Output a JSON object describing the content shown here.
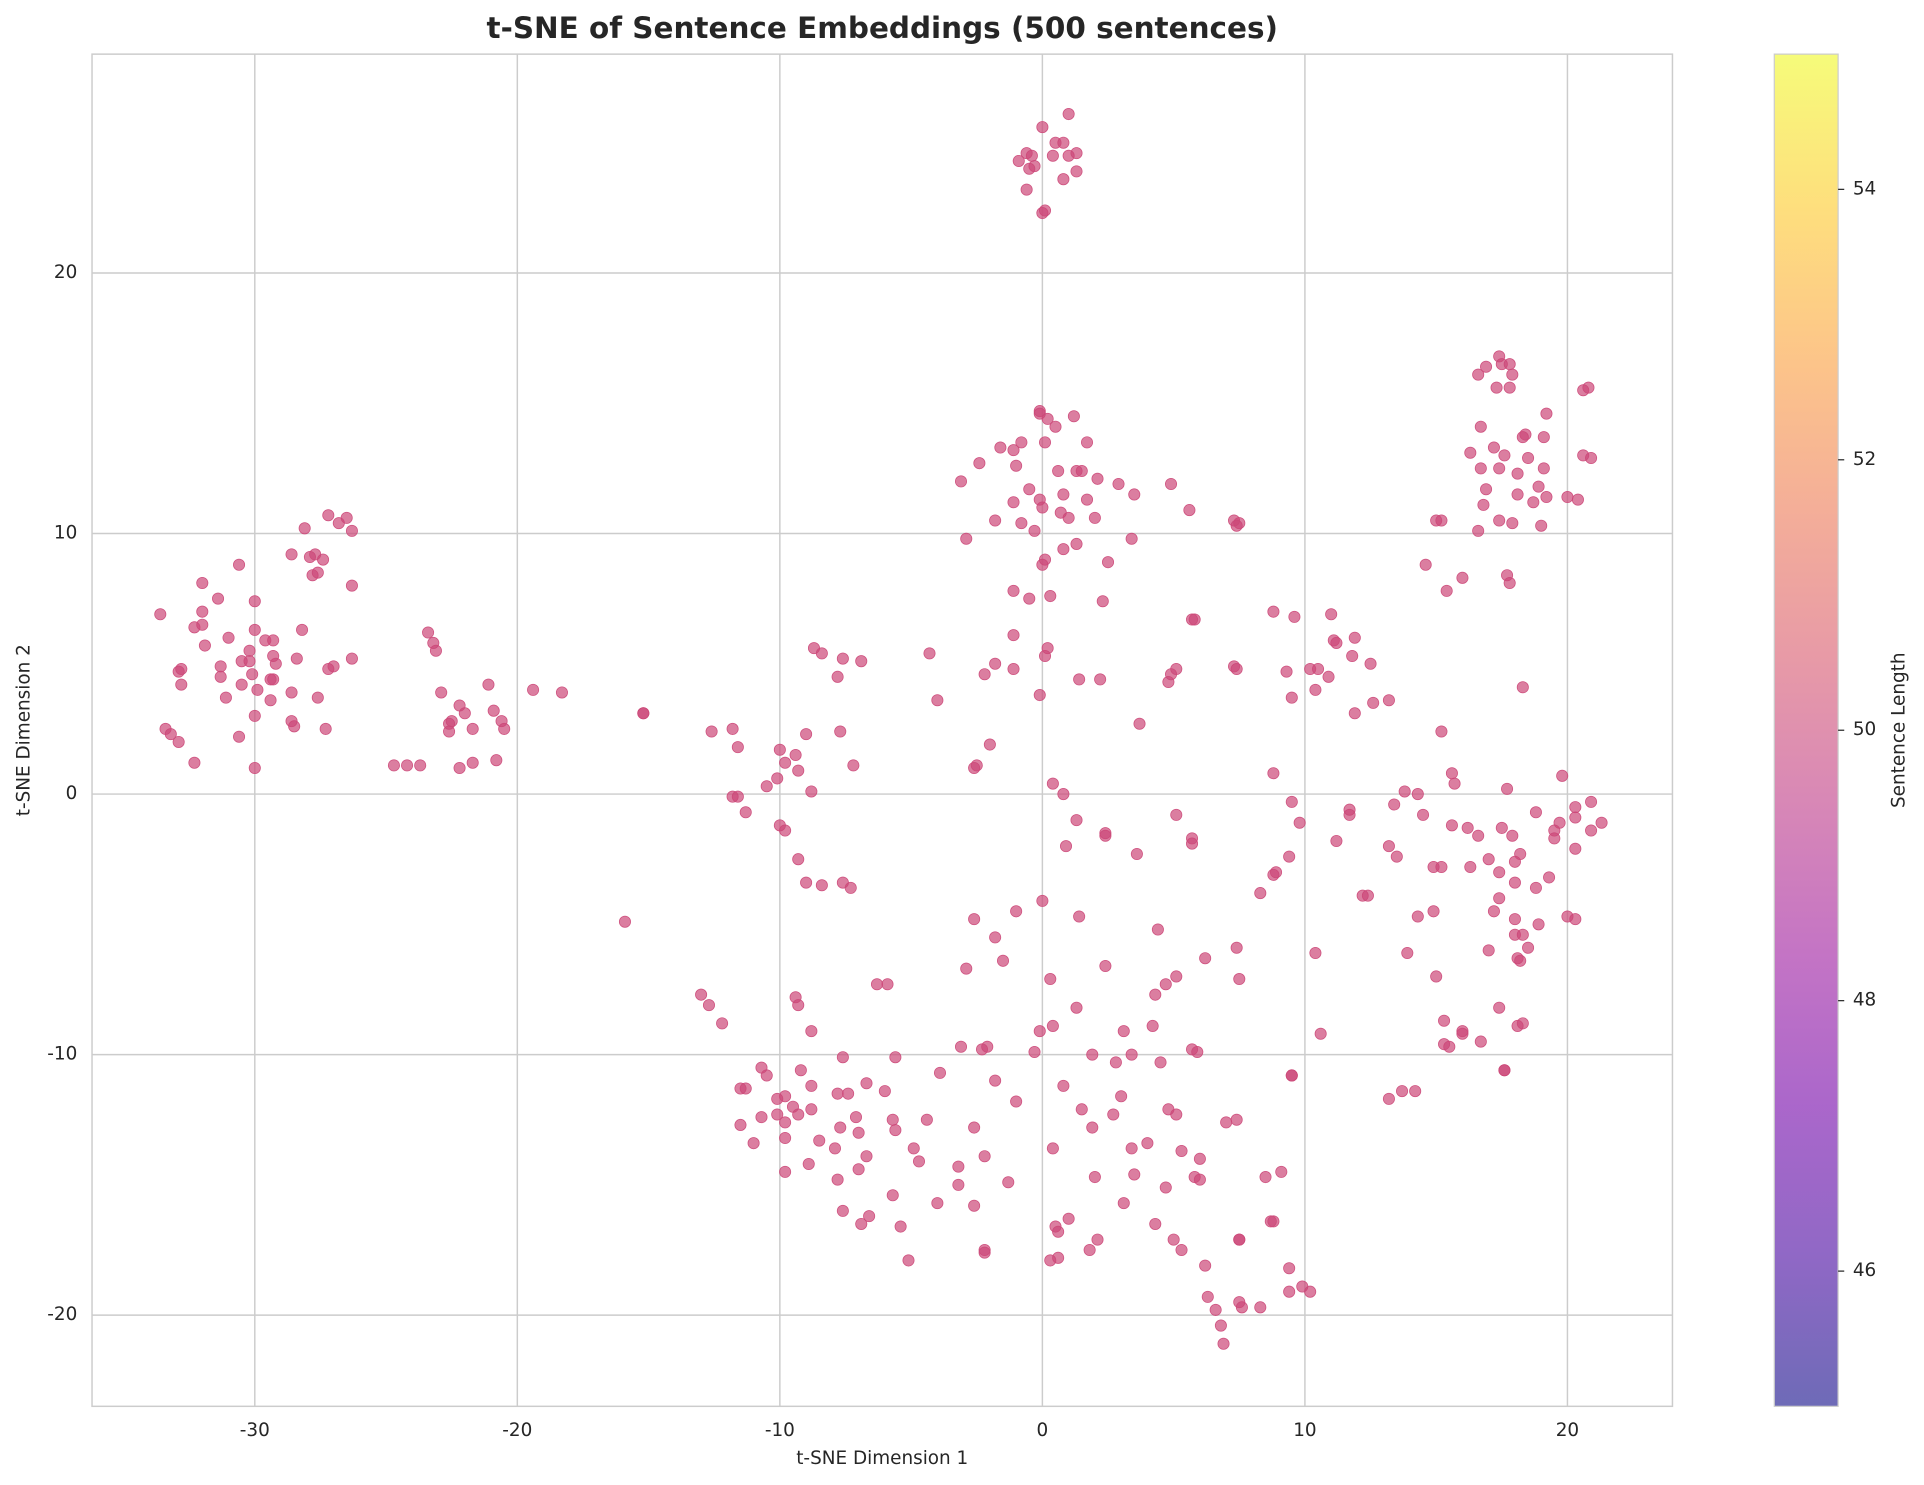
{
  "chart_data": {
    "type": "scatter",
    "title": "t-SNE of Sentence Embeddings (500 sentences)",
    "x_label": "t-SNE Dimension 1",
    "y_label": "t-SNE Dimension 2",
    "color": "#cc4778",
    "alpha": 0.7,
    "xlim": [
      -36.2,
      24.0
    ],
    "ylim": [
      -23.5,
      28.4
    ],
    "xticks": [
      -30,
      -20,
      -10,
      0,
      10,
      20
    ],
    "yticks": [
      -20,
      -10,
      0,
      10,
      20
    ],
    "grid": true,
    "colorbar": {
      "label": "Sentence Length",
      "colormap": "plasma",
      "lim": [
        45,
        55
      ],
      "ticks": [
        46,
        48,
        50,
        52,
        54
      ]
    },
    "x": [
      0.0,
      1.0,
      0.5,
      0.8,
      -0.6,
      -0.9,
      -0.4,
      0.4,
      1.3,
      1.0,
      -0.5,
      -0.3,
      1.3,
      0.8,
      -0.6,
      0.1,
      0.0,
      -27.2,
      -26.5,
      -26.8,
      -26.3,
      -28.1,
      -28.6,
      -27.7,
      -27.4,
      -27.9,
      -30.6,
      -27.8,
      -27.6,
      -32.0,
      -26.3,
      -31.4,
      -30.0,
      -33.6,
      -32.0,
      -32.3,
      -32.0,
      -28.2,
      -30.0,
      -31.0,
      -29.6,
      -29.3,
      -31.9,
      -30.2,
      -29.3,
      -28.4,
      -26.3,
      -29.2,
      -30.5,
      -30.2,
      -27.0,
      -27.2,
      -31.3,
      -32.8,
      -32.9,
      -30.1,
      -31.3,
      -29.4,
      -29.3,
      -32.8,
      -30.5,
      -29.9,
      -28.6,
      -27.6,
      -31.1,
      -29.4,
      -30.0,
      -28.6,
      -28.5,
      -27.3,
      -33.4,
      -33.2,
      -30.6,
      -32.9,
      -32.3,
      -30.0,
      -23.4,
      -23.2,
      -23.1,
      -21.1,
      -19.4,
      -18.3,
      -22.9,
      -22.2,
      -20.9,
      -22.0,
      -22.5,
      -22.6,
      -20.6,
      -20.5,
      -21.7,
      -22.6,
      -20.8,
      -21.7,
      -22.2,
      -23.7,
      -24.2,
      -24.7,
      -15.2,
      -15.2,
      -15.9,
      -13.0,
      -12.7,
      -12.2,
      -8.7,
      -8.4,
      -7.6,
      -6.9,
      -7.8,
      -12.6,
      -11.8,
      -7.7,
      -9.0,
      -11.6,
      -10.0,
      -9.4,
      -9.8,
      -7.2,
      -9.3,
      -10.1,
      -10.5,
      -8.8,
      -11.8,
      -11.6,
      -11.3,
      -10.0,
      -9.8,
      -9.3,
      -9.0,
      -8.4,
      -7.6,
      -7.3,
      -4.3,
      -4.0,
      -2.2,
      -2.0,
      -2.6,
      -2.5,
      -0.1,
      -0.1,
      1.2,
      0.2,
      0.5,
      -1.6,
      -1.1,
      -0.8,
      0.1,
      1.7,
      -3.1,
      -2.4,
      -1.0,
      0.6,
      1.3,
      1.5,
      2.1,
      2.9,
      3.5,
      4.9,
      -0.5,
      0.8,
      -1.1,
      -0.1,
      0.0,
      1.7,
      5.6,
      -1.8,
      -0.8,
      0.7,
      1.0,
      2.0,
      -0.3,
      7.3,
      7.5,
      7.4,
      -2.9,
      3.4,
      1.3,
      0.8,
      0.1,
      0.0,
      2.5,
      -1.1,
      -0.5,
      0.3,
      2.3,
      -1.1,
      0.2,
      0.1,
      5.8,
      5.7,
      -1.8,
      -1.1,
      1.4,
      2.2,
      5.1,
      4.9,
      4.8,
      7.3,
      7.4,
      -0.1,
      3.7,
      0.4,
      0.8,
      8.8,
      9.6,
      11.0,
      11.1,
      11.2,
      11.9,
      11.8,
      10.2,
      10.5,
      10.9,
      9.3,
      12.5,
      10.4,
      9.5,
      12.6,
      11.9,
      13.2,
      8.8,
      17.4,
      17.5,
      17.8,
      16.9,
      16.6,
      17.9,
      17.3,
      17.8,
      20.6,
      20.8,
      19.2,
      16.7,
      18.4,
      18.3,
      19.1,
      17.2,
      16.3,
      17.6,
      18.5,
      20.6,
      20.9,
      16.7,
      17.4,
      19.1,
      18.1,
      18.9,
      16.9,
      18.1,
      19.2,
      20.0,
      20.4,
      16.8,
      18.7,
      15.0,
      15.2,
      17.4,
      17.9,
      19.0,
      16.6,
      14.6,
      16.0,
      17.7,
      17.8,
      15.4,
      18.3,
      15.2,
      15.6,
      15.7,
      19.8,
      13.8,
      14.3,
      17.7,
      13.4,
      14.5,
      18.8,
      20.3,
      20.9,
      19.7,
      20.3,
      21.3,
      15.6,
      16.2,
      17.5,
      20.9,
      19.5,
      16.6,
      17.9,
      19.5,
      13.2,
      18.2,
      20.3,
      13.5,
      17.0,
      18.0,
      14.9,
      15.2,
      16.3,
      17.4,
      19.3,
      18.0,
      18.8,
      17.4,
      14.3,
      14.9,
      17.2,
      18.0,
      20.0,
      20.3,
      18.9,
      18.0,
      18.3,
      18.5,
      17.0,
      13.9,
      18.1,
      18.2,
      15.0,
      17.4,
      18.3,
      18.1,
      15.3,
      16.0,
      16.0,
      16.7,
      15.3,
      15.5,
      17.6,
      17.6,
      14.2,
      13.7,
      13.2,
      9.5,
      9.5,
      9.5,
      9.8,
      11.7,
      11.7,
      11.2,
      9.4,
      8.9,
      8.8,
      8.3,
      12.2,
      12.4,
      10.4,
      10.6,
      1.3,
      2.4,
      2.4,
      5.1,
      5.7,
      5.7,
      0.9,
      3.6,
      0.0,
      1.4,
      -1.0,
      -2.6,
      -1.8,
      4.4,
      7.4,
      -1.5,
      -2.9,
      6.2,
      2.4,
      5.1,
      4.7,
      7.5,
      0.3,
      4.3,
      1.3,
      4.2,
      0.4,
      -0.1,
      3.1,
      -3.1,
      -2.3,
      -2.1,
      -0.3,
      1.9,
      3.4,
      5.7,
      5.9,
      2.8,
      4.5,
      -1.8,
      0.8,
      3.0,
      -1.0,
      4.8,
      5.1,
      1.5,
      2.7,
      7.0,
      7.4,
      -2.6,
      1.9,
      3.4,
      4.0,
      0.4,
      5.3,
      6.0,
      -2.2,
      -3.2,
      3.5,
      5.8,
      6.0,
      2.0,
      -1.3,
      -3.2,
      4.7,
      3.1,
      -2.6,
      4.3,
      1.0,
      0.5,
      0.6,
      5.0,
      2.1,
      7.5,
      7.5,
      5.3,
      1.8,
      0.6,
      0.3,
      -2.2,
      -2.2,
      6.2,
      9.4,
      8.8,
      8.7,
      8.5,
      9.1,
      9.9,
      10.2,
      9.4,
      6.3,
      7.5,
      7.6,
      6.6,
      8.3,
      6.8,
      6.9,
      -10.7,
      -10.5,
      -11.5,
      -11.3,
      -9.2,
      -7.6,
      -5.6,
      -8.8,
      -6.7,
      -7.8,
      -7.4,
      -6.0,
      -10.1,
      -9.8,
      -9.5,
      -10.1,
      -10.7,
      -9.3,
      -8.8,
      -9.8,
      -11.5,
      -7.7,
      -7.1,
      -5.7,
      -4.4,
      -5.6,
      -7.0,
      -9.8,
      -11.0,
      -8.5,
      -7.9,
      -4.9,
      -6.7,
      -4.7,
      -8.9,
      -9.8,
      -7.0,
      -7.8,
      -5.7,
      -4.0,
      -7.6,
      -6.6,
      -6.9,
      -5.4,
      -5.1,
      -6.3,
      -5.9,
      -9.4,
      -9.3,
      -8.8,
      -3.9
    ],
    "values": [
      25.6,
      26.1,
      25.0,
      25.0,
      24.6,
      24.3,
      24.5,
      24.5,
      24.6,
      24.5,
      24.0,
      24.1,
      23.9,
      23.6,
      23.2,
      22.4,
      22.3,
      10.7,
      10.6,
      10.4,
      10.1,
      10.2,
      9.2,
      9.2,
      9.0,
      9.1,
      8.8,
      8.4,
      8.5,
      8.1,
      8.0,
      7.5,
      7.4,
      6.9,
      7.0,
      6.4,
      6.5,
      6.3,
      6.3,
      6.0,
      5.9,
      5.9,
      5.7,
      5.5,
      5.3,
      5.2,
      5.2,
      5.0,
      5.1,
      5.1,
      4.9,
      4.8,
      4.9,
      4.8,
      4.7,
      4.6,
      4.5,
      4.4,
      4.4,
      4.2,
      4.2,
      4.0,
      3.9,
      3.7,
      3.7,
      3.6,
      3.0,
      2.8,
      2.6,
      2.5,
      2.5,
      2.3,
      2.2,
      2.0,
      1.2,
      1.0,
      6.2,
      5.8,
      5.5,
      4.2,
      4.0,
      3.9,
      3.9,
      3.4,
      3.2,
      3.1,
      2.8,
      2.7,
      2.8,
      2.5,
      2.5,
      2.4,
      1.3,
      1.2,
      1.0,
      1.1,
      1.1,
      1.1,
      3.1,
      3.1,
      -4.9,
      -7.7,
      -8.1,
      -8.8,
      5.6,
      5.4,
      5.2,
      5.1,
      4.5,
      2.4,
      2.5,
      2.4,
      2.3,
      1.8,
      1.7,
      1.5,
      1.2,
      1.1,
      0.9,
      0.6,
      0.3,
      0.1,
      -0.1,
      -0.1,
      -0.7,
      -1.2,
      -1.4,
      -2.5,
      -3.4,
      -3.5,
      -3.4,
      -3.6,
      5.4,
      3.6,
      4.6,
      1.9,
      1.0,
      1.1,
      14.7,
      14.6,
      14.5,
      14.4,
      14.1,
      13.3,
      13.2,
      13.5,
      13.5,
      13.5,
      12.0,
      12.7,
      12.6,
      12.4,
      12.4,
      12.4,
      12.1,
      11.9,
      11.5,
      11.9,
      11.7,
      11.5,
      11.2,
      11.3,
      11.0,
      11.3,
      10.9,
      10.5,
      10.4,
      10.8,
      10.6,
      10.6,
      10.1,
      10.5,
      10.4,
      10.3,
      9.8,
      9.8,
      9.6,
      9.4,
      9.0,
      8.8,
      8.9,
      7.8,
      7.5,
      7.6,
      7.4,
      6.1,
      5.6,
      5.3,
      6.7,
      6.7,
      5.0,
      4.8,
      4.4,
      4.4,
      4.8,
      4.6,
      4.3,
      4.9,
      4.8,
      3.8,
      2.7,
      0.4,
      0.0,
      7.0,
      6.8,
      6.9,
      5.9,
      5.8,
      6.0,
      5.3,
      4.8,
      4.8,
      4.5,
      4.7,
      5.0,
      4.0,
      3.7,
      3.5,
      3.1,
      3.6,
      0.8,
      16.8,
      16.5,
      16.5,
      16.4,
      16.1,
      16.1,
      15.6,
      15.6,
      15.5,
      15.6,
      14.6,
      14.1,
      13.8,
      13.7,
      13.7,
      13.3,
      13.1,
      13.0,
      12.9,
      13.0,
      12.9,
      12.5,
      12.5,
      12.5,
      12.3,
      11.8,
      11.7,
      11.5,
      11.4,
      11.4,
      11.3,
      11.1,
      11.2,
      10.5,
      10.5,
      10.5,
      10.4,
      10.3,
      10.1,
      8.8,
      8.3,
      8.4,
      8.1,
      7.8,
      4.1,
      2.4,
      0.8,
      0.4,
      0.7,
      0.1,
      0.0,
      0.2,
      -0.4,
      -0.8,
      -0.7,
      -0.5,
      -0.3,
      -1.1,
      -0.9,
      -1.1,
      -1.2,
      -1.3,
      -1.3,
      -1.4,
      -1.4,
      -1.6,
      -1.6,
      -1.7,
      -2.0,
      -2.3,
      -2.1,
      -2.4,
      -2.5,
      -2.6,
      -2.8,
      -2.8,
      -2.8,
      -3.0,
      -3.2,
      -3.4,
      -3.6,
      -4.0,
      -4.7,
      -4.5,
      -4.5,
      -4.8,
      -4.7,
      -4.8,
      -5.0,
      -5.4,
      -5.4,
      -5.9,
      -6.0,
      -6.1,
      -6.3,
      -6.4,
      -7.0,
      -8.2,
      -8.8,
      -8.9,
      -8.7,
      -9.1,
      -9.2,
      -9.5,
      -9.6,
      -9.7,
      -10.6,
      -10.6,
      -11.4,
      -11.4,
      -11.7,
      -10.8,
      -10.8,
      -0.3,
      -1.1,
      -0.6,
      -0.8,
      -1.8,
      -2.4,
      -3.0,
      -3.1,
      -3.8,
      -3.9,
      -3.9,
      -6.1,
      -9.2,
      -1.0,
      -1.5,
      -1.6,
      -0.8,
      -1.7,
      -1.9,
      -2.0,
      -2.3,
      -4.1,
      -4.7,
      -4.5,
      -4.8,
      -5.5,
      -5.2,
      -5.9,
      -6.4,
      -6.7,
      -6.3,
      -6.6,
      -7.0,
      -7.3,
      -7.1,
      -7.1,
      -7.7,
      -8.2,
      -8.9,
      -8.9,
      -9.1,
      -9.1,
      -9.7,
      -9.8,
      -9.7,
      -9.9,
      -10.0,
      -10.0,
      -9.8,
      -9.9,
      -10.3,
      -10.3,
      -11.0,
      -11.2,
      -11.6,
      -11.8,
      -12.1,
      -12.3,
      -12.1,
      -12.3,
      -12.6,
      -12.5,
      -12.8,
      -12.8,
      -13.6,
      -13.4,
      -13.6,
      -13.7,
      -14.0,
      -13.9,
      -14.3,
      -14.6,
      -14.7,
      -14.8,
      -14.7,
      -14.9,
      -15.0,
      -15.1,
      -15.7,
      -15.8,
      -16.5,
      -16.3,
      -16.6,
      -16.8,
      -17.1,
      -17.1,
      -17.1,
      -17.1,
      -17.5,
      -17.5,
      -17.8,
      -17.9,
      -17.5,
      -17.6,
      -18.1,
      -18.2,
      -16.4,
      -16.4,
      -14.7,
      -14.5,
      -18.9,
      -19.1,
      -19.1,
      -19.3,
      -19.5,
      -19.7,
      -19.8,
      -19.7,
      -20.4,
      -21.1,
      -10.5,
      -10.8,
      -11.3,
      -11.3,
      -10.6,
      -10.1,
      -10.1,
      -11.2,
      -11.1,
      -11.5,
      -11.5,
      -11.4,
      -11.7,
      -11.6,
      -12.0,
      -12.3,
      -12.4,
      -12.3,
      -12.1,
      -12.6,
      -12.7,
      -12.8,
      -12.4,
      -12.5,
      -12.5,
      -12.9,
      -13.0,
      -13.2,
      -13.4,
      -13.3,
      -13.6,
      -13.6,
      -13.9,
      -14.1,
      -14.2,
      -14.5,
      -14.4,
      -14.8,
      -15.4,
      -15.7,
      -16.0,
      -16.2,
      -16.5,
      -16.6,
      -17.9,
      -7.3,
      -7.3,
      -7.8,
      -8.1,
      -9.1,
      -10.7
    ]
  }
}
